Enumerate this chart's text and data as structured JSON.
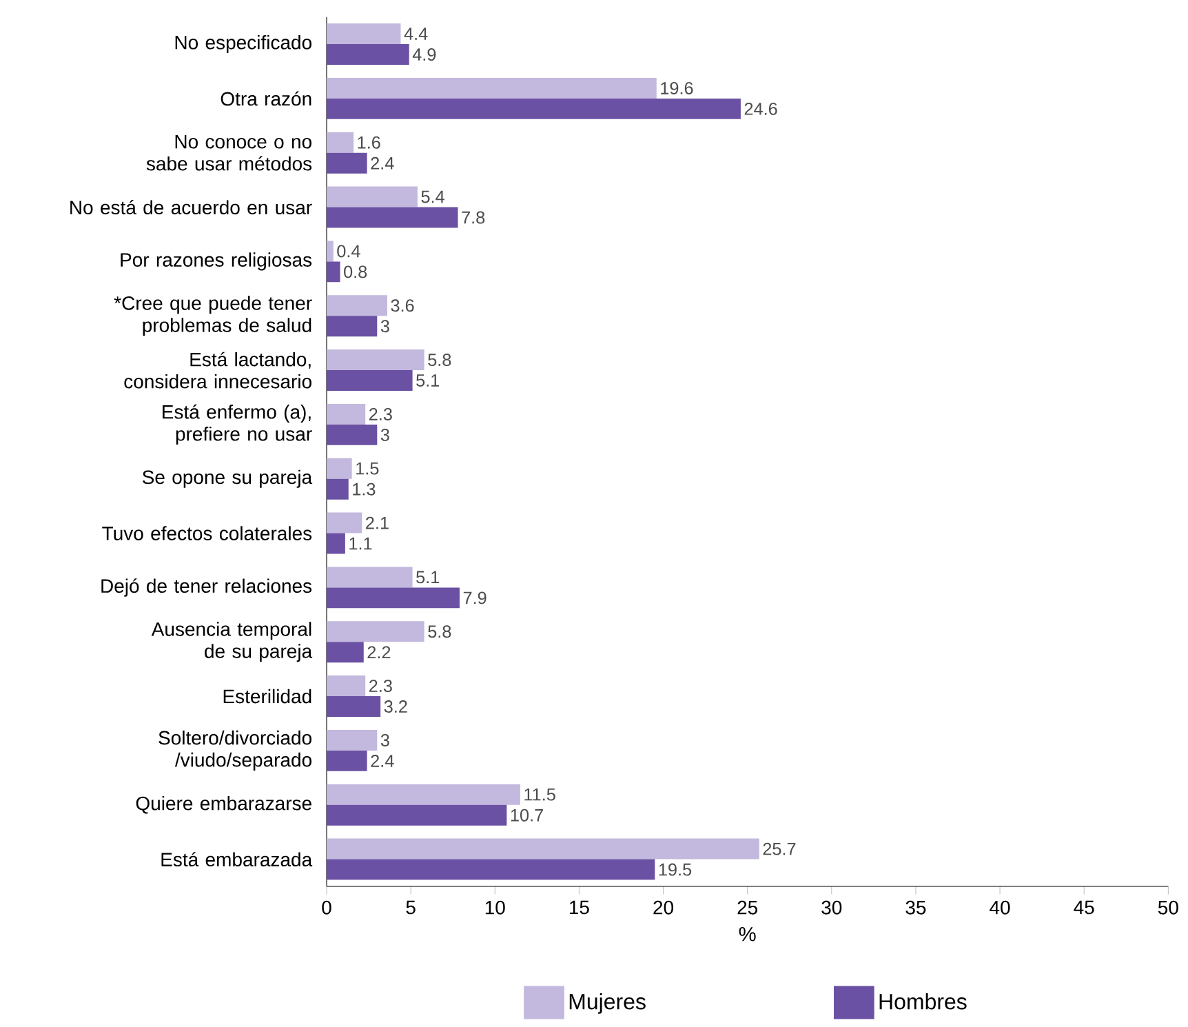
{
  "chart_data": {
    "type": "bar",
    "orientation": "horizontal",
    "xlabel": "%",
    "categories": [
      "No especificado",
      "Otra razón",
      "No conoce o no sabe usar métodos",
      "No está de acuerdo en usar",
      "Por razones religiosas",
      "*Cree que puede tener problemas de salud",
      "Está lactando, considera innecesario",
      "Está enfermo (a), prefiere no usar",
      "Se opone su pareja",
      "Tuvo efectos colaterales",
      "Dejó de tener relaciones",
      "Ausencia temporal de su pareja",
      "Esterilidad",
      "Soltero/divorciado /viudo/separado",
      "Quiere embarazarse",
      "Está embarazada"
    ],
    "series": [
      {
        "name": "Mujeres",
        "color": "#c3b8dd",
        "values": [
          4.4,
          19.6,
          1.6,
          5.4,
          0.4,
          3.6,
          5.8,
          2.3,
          1.5,
          2.1,
          5.1,
          5.8,
          2.3,
          3,
          11.5,
          25.7
        ]
      },
      {
        "name": "Hombres",
        "color": "#6a51a3",
        "values": [
          4.9,
          24.6,
          2.4,
          7.8,
          0.8,
          3,
          5.1,
          3,
          1.3,
          1.1,
          7.9,
          2.2,
          3.2,
          2.4,
          10.7,
          19.5
        ]
      }
    ],
    "xlim": [
      0,
      50
    ],
    "xticks": [
      0,
      5,
      10,
      15,
      20,
      25,
      30,
      35,
      40,
      45,
      50
    ],
    "data_labels": true,
    "legend": "bottom",
    "grid": false
  }
}
